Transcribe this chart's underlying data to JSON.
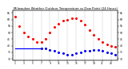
{
  "title": "Milwaukee Weather Outdoor Temperature vs Dew Point (24 Hours)",
  "title_fontsize": 2.8,
  "bg_color": "#ffffff",
  "plot_bg_color": "#ffffff",
  "grid_color": "#aaaaaa",
  "temp_color": "#ff0000",
  "dew_color": "#0000ff",
  "hours": [
    1,
    2,
    3,
    4,
    5,
    6,
    7,
    8,
    9,
    10,
    11,
    12,
    13,
    14,
    15,
    16,
    17,
    18,
    19,
    20,
    21,
    22,
    23,
    24
  ],
  "temp_values": [
    62,
    55,
    50,
    47,
    45,
    43,
    43,
    45,
    50,
    54,
    57,
    59,
    60,
    61,
    61,
    59,
    56,
    52,
    48,
    45,
    43,
    41,
    40,
    39
  ],
  "dew_values": [
    38,
    38,
    38,
    38,
    38,
    38,
    38,
    38,
    37,
    36,
    35,
    34,
    33,
    33,
    34,
    35,
    36,
    36,
    37,
    37,
    36,
    35,
    34,
    33
  ],
  "dew_solid_end": 7,
  "ylim": [
    29,
    67
  ],
  "xlim": [
    0.5,
    24.5
  ],
  "ytick_values": [
    30,
    35,
    40,
    45,
    50,
    55,
    60,
    65
  ],
  "xtick_values": [
    1,
    3,
    5,
    7,
    9,
    11,
    13,
    15,
    17,
    19,
    21,
    23
  ],
  "xtick_labels": [
    "1",
    "3",
    "5",
    "7",
    "9",
    "11",
    "13",
    "15",
    "17",
    "19",
    "21",
    "23"
  ],
  "ytick_labels": [
    "30",
    "35",
    "40",
    "45",
    "50",
    "55",
    "60",
    "65"
  ],
  "vgrid_positions": [
    1,
    3,
    5,
    7,
    9,
    11,
    13,
    15,
    17,
    19,
    21,
    23
  ],
  "marker_size": 1.2,
  "tick_fontsize": 2.2,
  "dew_linewidth": 0.9
}
